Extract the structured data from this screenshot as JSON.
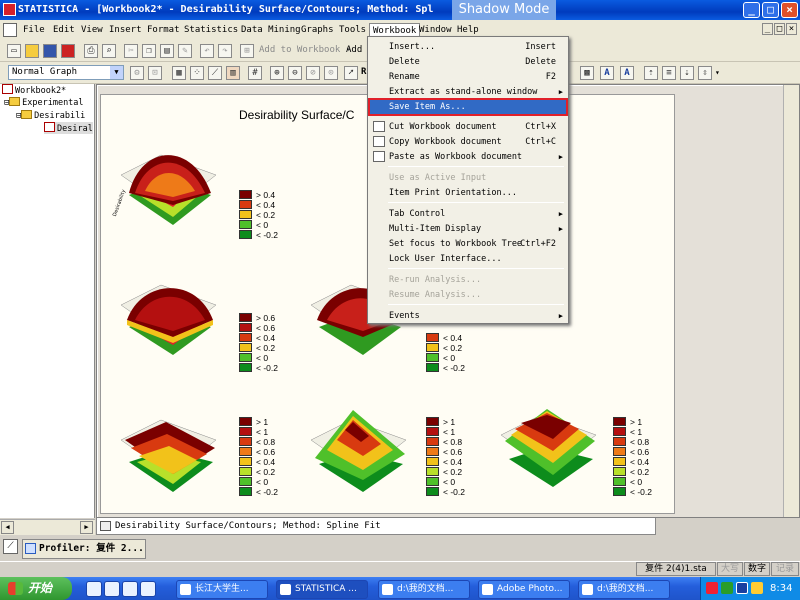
{
  "window": {
    "title": "STATISTICA - [Workbook2* - Desirability Surface/Contours; Method: Spl",
    "shadow_mode": "Shadow Mode",
    "min": "_",
    "max": "□",
    "close": "×"
  },
  "mdi_controls": [
    "_",
    "□",
    "×"
  ],
  "menubar": [
    "File",
    "Edit",
    "View",
    "Insert",
    "Format",
    "Statistics",
    "Data Mining",
    "Graphs",
    "Tools",
    "Workbook",
    "Window",
    "Help"
  ],
  "active_menu": "Workbook",
  "toolbar": {
    "add_to_workbook": "Add to Workbook ▾",
    "add": "Add",
    "graph_style": "Normal Graph",
    "r": "R"
  },
  "tree": {
    "root": "Workbook2*",
    "level1": "Experimental",
    "level2": "Desirabili",
    "level3": "Desiral"
  },
  "workbook_menu": [
    {
      "label": "Insert...",
      "shortcut": "Insert",
      "enabled": true
    },
    {
      "label": "Delete",
      "shortcut": "Delete",
      "enabled": true
    },
    {
      "label": "Rename",
      "shortcut": "F2",
      "enabled": true
    },
    {
      "label": "Extract as stand-alone window",
      "submenu": true,
      "enabled": true
    },
    {
      "label": "Save Item As...",
      "enabled": true,
      "highlighted": true
    },
    {
      "label": "Cut Workbook document",
      "shortcut": "Ctrl+X",
      "enabled": true,
      "icon": "scissors-icon"
    },
    {
      "label": "Copy Workbook document",
      "shortcut": "Ctrl+C",
      "enabled": true,
      "icon": "copy-icon"
    },
    {
      "label": "Paste as Workbook document",
      "submenu": true,
      "enabled": true,
      "icon": "paste-icon"
    },
    {
      "label": "Use as Active Input",
      "enabled": false
    },
    {
      "label": "Item Print Orientation...",
      "enabled": true
    },
    {
      "label": "Tab Control",
      "submenu": true,
      "enabled": true
    },
    {
      "label": "Multi-Item Display",
      "submenu": true,
      "enabled": true
    },
    {
      "label": "Set focus to Workbook Tree",
      "shortcut": "Ctrl+F2",
      "enabled": true
    },
    {
      "label": "Lock User Interface...",
      "enabled": true
    },
    {
      "label": "Re-run Analysis...",
      "enabled": false
    },
    {
      "label": "Resume Analysis...",
      "enabled": false
    },
    {
      "label": "Events",
      "submenu": true,
      "enabled": true
    }
  ],
  "graph": {
    "title": "Desirability Surface/C",
    "legends": {
      "a": [
        "> 0.4",
        "< 0.4",
        "< 0.2",
        "< 0",
        "< -0.2"
      ],
      "b": [
        "> 0.6",
        "< 0.6",
        "< 0.4",
        "< 0.2",
        "< 0",
        "< -0.2"
      ],
      "c": [
        "< 0.4",
        "< 0.2",
        "< 0",
        "< -0.2"
      ],
      "d": [
        "> 1",
        "< 1",
        "< 0.8",
        "< 0.6",
        "< 0.4",
        "< 0.2",
        "< 0",
        "< -0.2"
      ],
      "e": [
        "> 1",
        "< 1",
        "< 0.8",
        "< 0.6",
        "< 0.4",
        "< 0.2",
        "< 0",
        "< -0.2"
      ],
      "f": [
        "> 1",
        "< 1",
        "< 0.8",
        "< 0.6",
        "< 0.4",
        "< 0.2",
        "< 0",
        "< -0.2"
      ]
    },
    "legend_colors": [
      "#7a0000",
      "#b41010",
      "#d83a10",
      "#ee7a18",
      "#f2c21a",
      "#b8e02a",
      "#4fc02a",
      "#0d8c1c"
    ],
    "axis_label": "Desirability"
  },
  "doc_tab": "Desirability Surface/Contours; Method: Spline Fit",
  "profiler": "Profiler: 复件 2...",
  "status": {
    "file": "复件 2(4)1.sta",
    "caps": "大写",
    "num": "数字",
    "rec": "记录"
  },
  "taskbar": {
    "start": "开始",
    "tasks": [
      "长江大学生...",
      "STATISTICA ...",
      "d:\\我的文档...",
      "Adobe Photo...",
      "d:\\我的文档..."
    ],
    "clock": "8:34"
  }
}
